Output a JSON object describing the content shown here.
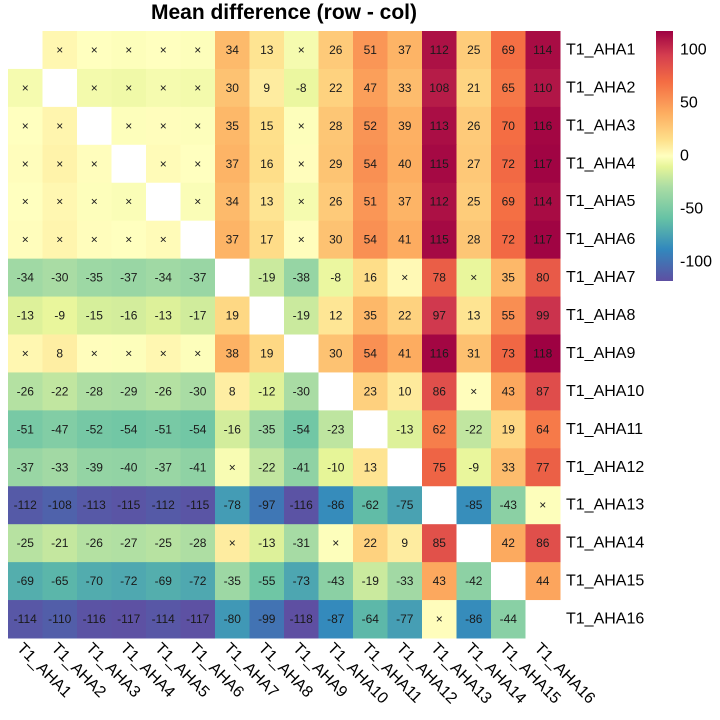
{
  "chart_data": {
    "type": "heatmap",
    "title": "Mean difference (row - col)",
    "xlabel": "",
    "ylabel": "",
    "rows": [
      "T1_AHA1",
      "T1_AHA2",
      "T1_AHA3",
      "T1_AHA4",
      "T1_AHA5",
      "T1_AHA6",
      "T1_AHA7",
      "T1_AHA8",
      "T1_AHA9",
      "T1_AHA10",
      "T1_AHA11",
      "T1_AHA12",
      "T1_AHA13",
      "T1_AHA14",
      "T1_AHA15",
      "T1_AHA16"
    ],
    "cols": [
      "T1_AHA1",
      "T1_AHA2",
      "T1_AHA3",
      "T1_AHA4",
      "T1_AHA5",
      "T1_AHA6",
      "T1_AHA7",
      "T1_AHA8",
      "T1_AHA9",
      "T1_AHA10",
      "T1_AHA11",
      "T1_AHA12",
      "T1_AHA13",
      "T1_AHA14",
      "T1_AHA15",
      "T1_AHA16"
    ],
    "non_significant_marker": "×",
    "values": [
      [
        null,
        4,
        0,
        -1,
        0,
        -1,
        34,
        13,
        -4,
        26,
        51,
        37,
        112,
        25,
        69,
        114
      ],
      [
        -4,
        null,
        -5,
        -6,
        -4,
        -5,
        30,
        9,
        -8,
        22,
        47,
        33,
        108,
        21,
        65,
        110
      ],
      [
        0,
        5,
        null,
        -1,
        1,
        -1,
        35,
        15,
        -1,
        28,
        52,
        39,
        113,
        26,
        70,
        116
      ],
      [
        1,
        6,
        1,
        null,
        2,
        0,
        37,
        16,
        1,
        29,
        54,
        40,
        115,
        27,
        72,
        117
      ],
      [
        0,
        4,
        -1,
        -2,
        null,
        -2,
        34,
        13,
        -4,
        26,
        51,
        37,
        112,
        25,
        69,
        114
      ],
      [
        1,
        5,
        1,
        0,
        2,
        null,
        37,
        17,
        1,
        30,
        54,
        41,
        115,
        28,
        72,
        117
      ],
      [
        -34,
        -30,
        -35,
        -37,
        -34,
        -37,
        null,
        -19,
        -38,
        -8,
        16,
        3,
        78,
        -9,
        35,
        80
      ],
      [
        -13,
        -9,
        -15,
        -16,
        -13,
        -17,
        19,
        null,
        -19,
        12,
        35,
        22,
        97,
        13,
        55,
        99
      ],
      [
        4,
        8,
        1,
        -1,
        4,
        -1,
        38,
        19,
        null,
        30,
        54,
        41,
        116,
        31,
        73,
        118
      ],
      [
        -26,
        -22,
        -28,
        -29,
        -26,
        -30,
        8,
        -12,
        -30,
        null,
        23,
        10,
        86,
        1,
        43,
        87
      ],
      [
        -51,
        -47,
        -52,
        -54,
        -51,
        -54,
        -16,
        -35,
        -54,
        -23,
        null,
        -13,
        62,
        -22,
        19,
        64
      ],
      [
        -37,
        -33,
        -39,
        -40,
        -37,
        -41,
        -3,
        -22,
        -41,
        -10,
        13,
        null,
        75,
        -9,
        33,
        77
      ],
      [
        -112,
        -108,
        -113,
        -115,
        -112,
        -115,
        -78,
        -97,
        -116,
        -86,
        -62,
        -75,
        null,
        -85,
        -43,
        -1
      ],
      [
        -25,
        -21,
        -26,
        -27,
        -25,
        -28,
        9,
        -13,
        -31,
        -1,
        22,
        9,
        85,
        null,
        42,
        86
      ],
      [
        -69,
        -65,
        -70,
        -72,
        -69,
        -72,
        -35,
        -55,
        -73,
        -43,
        -19,
        -33,
        43,
        -42,
        null,
        44
      ],
      [
        -114,
        -110,
        -116,
        -117,
        -114,
        -117,
        -80,
        -99,
        -118,
        -87,
        -64,
        -77,
        1,
        -86,
        -44,
        null
      ]
    ],
    "labels": [
      [
        "",
        "×",
        "×",
        "×",
        "×",
        "×",
        "34",
        "13",
        "×",
        "26",
        "51",
        "37",
        "112",
        "25",
        "69",
        "114"
      ],
      [
        "×",
        "",
        "×",
        "×",
        "×",
        "×",
        "30",
        "9",
        "-8",
        "22",
        "47",
        "33",
        "108",
        "21",
        "65",
        "110"
      ],
      [
        "×",
        "×",
        "",
        "×",
        "×",
        "×",
        "35",
        "15",
        "×",
        "28",
        "52",
        "39",
        "113",
        "26",
        "70",
        "116"
      ],
      [
        "×",
        "×",
        "×",
        "",
        "×",
        "×",
        "37",
        "16",
        "×",
        "29",
        "54",
        "40",
        "115",
        "27",
        "72",
        "117"
      ],
      [
        "×",
        "×",
        "×",
        "×",
        "",
        "×",
        "34",
        "13",
        "×",
        "26",
        "51",
        "37",
        "112",
        "25",
        "69",
        "114"
      ],
      [
        "×",
        "×",
        "×",
        "×",
        "×",
        "",
        "37",
        "17",
        "×",
        "30",
        "54",
        "41",
        "115",
        "28",
        "72",
        "117"
      ],
      [
        "-34",
        "-30",
        "-35",
        "-37",
        "-34",
        "-37",
        "",
        "-19",
        "-38",
        "-8",
        "16",
        "×",
        "78",
        "×",
        "35",
        "80"
      ],
      [
        "-13",
        "-9",
        "-15",
        "-16",
        "-13",
        "-17",
        "19",
        "",
        "-19",
        "12",
        "35",
        "22",
        "97",
        "13",
        "55",
        "99"
      ],
      [
        "×",
        "8",
        "×",
        "×",
        "×",
        "×",
        "38",
        "19",
        "",
        "30",
        "54",
        "41",
        "116",
        "31",
        "73",
        "118"
      ],
      [
        "-26",
        "-22",
        "-28",
        "-29",
        "-26",
        "-30",
        "8",
        "-12",
        "-30",
        "",
        "23",
        "10",
        "86",
        "×",
        "43",
        "87"
      ],
      [
        "-51",
        "-47",
        "-52",
        "-54",
        "-51",
        "-54",
        "-16",
        "-35",
        "-54",
        "-23",
        "",
        "-13",
        "62",
        "-22",
        "19",
        "64"
      ],
      [
        "-37",
        "-33",
        "-39",
        "-40",
        "-37",
        "-41",
        "×",
        "-22",
        "-41",
        "-10",
        "13",
        "",
        "75",
        "-9",
        "33",
        "77"
      ],
      [
        "-112",
        "-108",
        "-113",
        "-115",
        "-112",
        "-115",
        "-78",
        "-97",
        "-116",
        "-86",
        "-62",
        "-75",
        "",
        "-85",
        "-43",
        "×"
      ],
      [
        "-25",
        "-21",
        "-26",
        "-27",
        "-25",
        "-28",
        "×",
        "-13",
        "-31",
        "×",
        "22",
        "9",
        "85",
        "",
        "42",
        "86"
      ],
      [
        "-69",
        "-65",
        "-70",
        "-72",
        "-69",
        "-72",
        "-35",
        "-55",
        "-73",
        "-43",
        "-19",
        "-33",
        "43",
        "-42",
        "",
        "44"
      ],
      [
        "-114",
        "-110",
        "-116",
        "-117",
        "-114",
        "-117",
        "-80",
        "-99",
        "-118",
        "-87",
        "-64",
        "-77",
        "×",
        "-86",
        "-44",
        ""
      ]
    ],
    "color_scale": {
      "name": "Spectral (reversed)",
      "range": [
        -118,
        118
      ],
      "stops": [
        {
          "value": -118,
          "color": "#5e4fa2"
        },
        {
          "value": -88,
          "color": "#3288bd"
        },
        {
          "value": -59,
          "color": "#66c2a5"
        },
        {
          "value": -29,
          "color": "#abdda4"
        },
        {
          "value": -10,
          "color": "#e6f598"
        },
        {
          "value": 0,
          "color": "#ffffbf"
        },
        {
          "value": 15,
          "color": "#fee08b"
        },
        {
          "value": 40,
          "color": "#fdae61"
        },
        {
          "value": 70,
          "color": "#f46d43"
        },
        {
          "value": 95,
          "color": "#d53e4f"
        },
        {
          "value": 118,
          "color": "#9e0142"
        }
      ],
      "diagonal_color": "#ffffff"
    },
    "legend": {
      "position": "top-right",
      "ticks": [
        100,
        50,
        0,
        -50,
        -100
      ]
    },
    "grid": false
  }
}
